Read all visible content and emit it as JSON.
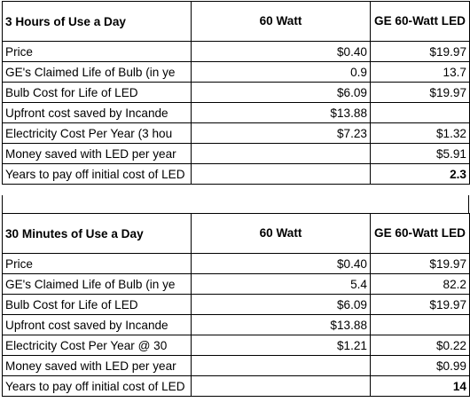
{
  "tables": [
    {
      "header": {
        "title": "3 Hours of Use a Day",
        "col1": "60 Watt",
        "col2": "GE 60-Watt LED"
      },
      "rows": [
        {
          "label": "Price",
          "v1": "$0.40",
          "v2": "$19.97"
        },
        {
          "label": "GE's Claimed Life of Bulb (in ye",
          "v1": "0.9",
          "v2": "13.7"
        },
        {
          "label": "Bulb Cost for Life of LED",
          "v1": "$6.09",
          "v2": "$19.97"
        },
        {
          "label": "Upfront cost saved by Incande",
          "v1": "$13.88",
          "v2": ""
        },
        {
          "label": "Electricity Cost Per Year (3 hou",
          "v1": "$7.23",
          "v2": "$1.32"
        },
        {
          "label": "Money saved with LED per year",
          "v1": "",
          "v2": "$5.91"
        },
        {
          "label": "Years to pay off initial cost of LED",
          "v1": "",
          "v2": "2.3"
        }
      ]
    },
    {
      "header": {
        "title": "30 Minutes of Use a Day",
        "col1": "60 Watt",
        "col2": "GE 60-Watt LED"
      },
      "rows": [
        {
          "label": "Price",
          "v1": "$0.40",
          "v2": "$19.97"
        },
        {
          "label": "GE's Claimed Life of Bulb (in ye",
          "v1": "5.4",
          "v2": "82.2"
        },
        {
          "label": "Bulb Cost for Life of LED",
          "v1": "$6.09",
          "v2": "$19.97"
        },
        {
          "label": "Upfront cost saved by Incande",
          "v1": "$13.88",
          "v2": ""
        },
        {
          "label": "Electricity Cost Per Year @ 30",
          "v1": "$1.21",
          "v2": "$0.22"
        },
        {
          "label": "Money saved with LED per year",
          "v1": "",
          "v2": "$0.99"
        },
        {
          "label": "Years to pay off initial cost of LED",
          "v1": "",
          "v2": "14"
        }
      ]
    }
  ]
}
